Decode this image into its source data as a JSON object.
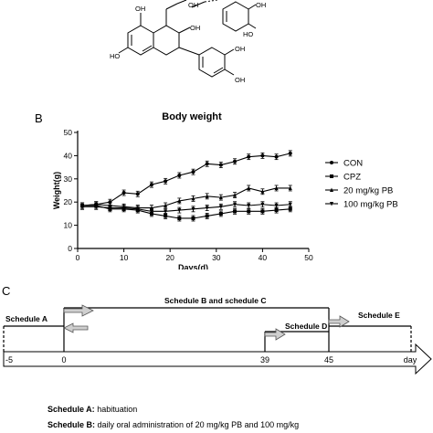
{
  "structure": {
    "substituents": [
      "OH",
      "OH",
      "OH",
      "HO",
      "OH",
      "HO",
      "OH",
      "OH"
    ]
  },
  "panels": {
    "b": "B",
    "c": "C"
  },
  "chart_data": {
    "type": "line",
    "title": "Body weight",
    "xlabel": "Days(d)",
    "ylabel": "Weight(g)",
    "xlim": [
      0,
      50
    ],
    "ylim": [
      0,
      50
    ],
    "xticks": [
      0,
      10,
      20,
      30,
      40,
      50
    ],
    "yticks": [
      0,
      10,
      20,
      30,
      40,
      50
    ],
    "x": [
      1,
      4,
      7,
      10,
      13,
      16,
      19,
      22,
      25,
      28,
      31,
      34,
      37,
      40,
      43,
      46
    ],
    "legend_position": "right",
    "series": [
      {
        "name": "CON",
        "marker": "circle",
        "values": [
          18.5,
          19,
          20,
          24,
          23.5,
          27.5,
          29,
          31.5,
          33,
          36.5,
          36,
          37.5,
          39.5,
          40,
          39.5,
          41
        ]
      },
      {
        "name": "CPZ",
        "marker": "square",
        "values": [
          18.5,
          18.5,
          17,
          17,
          16.5,
          15,
          14,
          13,
          13,
          14,
          15,
          16,
          16,
          16,
          16.5,
          17
        ]
      },
      {
        "name": "20 mg/kg PB",
        "marker": "triangle-up",
        "values": [
          18.5,
          19,
          18.5,
          18,
          17.5,
          17.5,
          18.5,
          20.5,
          21.5,
          22.5,
          22,
          23,
          26,
          24.5,
          26,
          26
        ]
      },
      {
        "name": "100 mg/kg PB",
        "marker": "triangle-down",
        "values": [
          18,
          18,
          17.5,
          17.5,
          17,
          16,
          16,
          16.5,
          17,
          17.5,
          18,
          19,
          18.5,
          19,
          18.5,
          19
        ]
      }
    ]
  },
  "timeline": {
    "ticks": [
      "-5",
      "0",
      "39",
      "45",
      "day"
    ],
    "schedules": [
      "Schedule A",
      "Schedule B and schedule C",
      "Schedule D",
      "Schedule E"
    ]
  },
  "notes": [
    {
      "label": "Schedule A:",
      "text": " habituation"
    },
    {
      "label": "Schedule B:",
      "text": " daily oral administration of 20 mg/kg PB and 100 mg/kg"
    }
  ]
}
